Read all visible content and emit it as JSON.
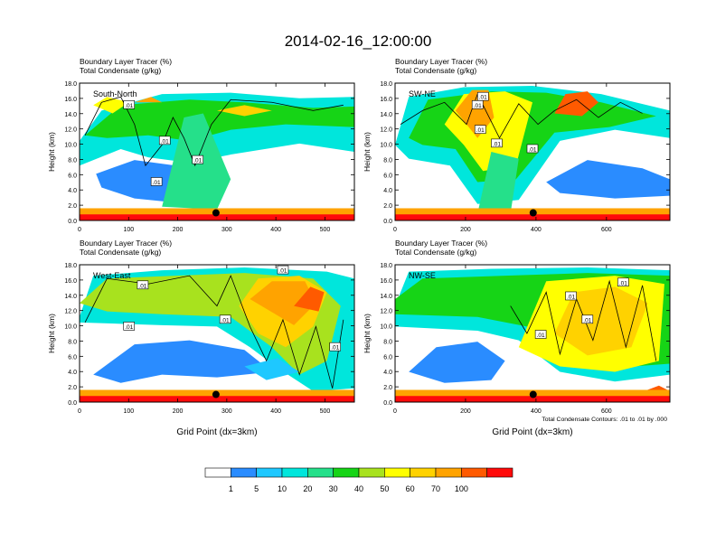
{
  "title": "2014-02-16_12:00:00",
  "colors": {
    "levels": [
      "#ffffff",
      "#2a8cff",
      "#1ec8ff",
      "#00e6dc",
      "#25e08a",
      "#16d416",
      "#a8e21e",
      "#ffff00",
      "#ffd200",
      "#ffa300",
      "#ff5a00",
      "#ff0a0a"
    ],
    "contour": "#000000",
    "marker": "#000000"
  },
  "chart_data": [
    {
      "type": "heatmap",
      "panel": "South-North",
      "title_line1": "Boundary Layer Tracer    (%)",
      "title_line2": "Total Condensate   (g/kg)",
      "ylabel": "Height (km)",
      "xlabel": "",
      "xlim": [
        0,
        560
      ],
      "ylim": [
        0,
        18
      ],
      "xticks": [
        0,
        100,
        200,
        300,
        400,
        500
      ],
      "yticks": [
        "0.0",
        "2.0",
        "4.0",
        "6.0",
        "8.0",
        "10.0",
        "12.0",
        "14.0",
        "16.0",
        "18.0"
      ],
      "contour_labels": [
        ".01",
        ".01",
        ".01",
        ".01"
      ],
      "marker_x": 278
    },
    {
      "type": "heatmap",
      "panel": "SW-NE",
      "title_line1": "Boundary Layer Tracer    (%)",
      "title_line2": "Total Condensate   (g/kg)",
      "ylabel": "Height (km)",
      "xlabel": "",
      "xlim": [
        0,
        780
      ],
      "ylim": [
        0,
        18
      ],
      "xticks": [
        0,
        200,
        400,
        600
      ],
      "yticks": [
        "0.0",
        "2.0",
        "4.0",
        "6.0",
        "8.0",
        "10.0",
        "12.0",
        "14.0",
        "16.0",
        "18.0"
      ],
      "contour_labels": [
        ".01",
        ".01",
        ".01",
        ".01",
        ".01"
      ],
      "marker_x": 392
    },
    {
      "type": "heatmap",
      "panel": "West-East",
      "title_line1": "Boundary Layer Tracer    (%)",
      "title_line2": "Total Condensate   (g/kg)",
      "ylabel": "Height (km)",
      "xlabel": "Grid Point (dx=3km)",
      "xlim": [
        0,
        560
      ],
      "ylim": [
        0,
        18
      ],
      "xticks": [
        0,
        100,
        200,
        300,
        400,
        500
      ],
      "yticks": [
        "0.0",
        "2.0",
        "4.0",
        "6.0",
        "8.0",
        "10.0",
        "12.0",
        "14.0",
        "16.0",
        "18.0"
      ],
      "contour_labels": [
        ".01",
        ".01",
        ".01",
        ".01",
        ".01"
      ],
      "marker_x": 278
    },
    {
      "type": "heatmap",
      "panel": "NW-SE",
      "title_line1": "Boundary Layer Tracer    (%)",
      "title_line2": "Total Condensate   (g/kg)",
      "ylabel": "Height (km)",
      "xlabel": "Grid Point (dx=3km)",
      "xlim": [
        0,
        780
      ],
      "ylim": [
        0,
        18
      ],
      "xticks": [
        0,
        200,
        400,
        600
      ],
      "yticks": [
        "0.0",
        "2.0",
        "4.0",
        "6.0",
        "8.0",
        "10.0",
        "12.0",
        "14.0",
        "16.0",
        "18.0"
      ],
      "contour_labels": [
        ".01",
        ".01",
        ".01",
        ".01"
      ],
      "marker_x": 392,
      "footnote": "Total Condensate Contours: .01 to .01 by .000"
    }
  ],
  "colorbar": {
    "labels": [
      "1",
      "5",
      "10",
      "20",
      "30",
      "40",
      "50",
      "60",
      "70",
      "100"
    ]
  }
}
